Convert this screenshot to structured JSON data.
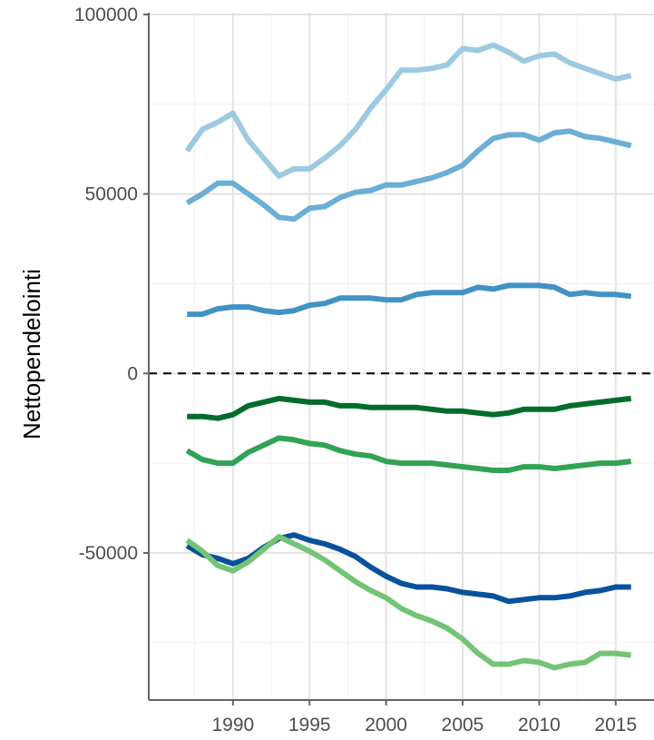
{
  "chart_data": {
    "type": "line",
    "title": "",
    "xlabel": "",
    "ylabel": "Nettopendelointi",
    "xlim": [
      1984.5,
      2017.5
    ],
    "ylim": [
      -91000,
      100500
    ],
    "grid": true,
    "reference_line": {
      "y": 0,
      "style": "dashed"
    },
    "x_ticks": [
      1990,
      1995,
      2000,
      2005,
      2010,
      2015
    ],
    "x_tick_labels": [
      "1990",
      "1995",
      "2000",
      "2005",
      "2010",
      "2015"
    ],
    "y_ticks": [
      -50000,
      0,
      50000,
      100000
    ],
    "y_tick_labels": [
      "-50000",
      "0",
      "50000",
      "100000"
    ],
    "x": [
      1987,
      1988,
      1989,
      1990,
      1991,
      1992,
      1993,
      1994,
      1995,
      1996,
      1997,
      1998,
      1999,
      2000,
      2001,
      2002,
      2003,
      2004,
      2005,
      2006,
      2007,
      2008,
      2009,
      2010,
      2011,
      2012,
      2013,
      2014,
      2015,
      2016
    ],
    "series": [
      {
        "color": "#9ecae1",
        "values": [
          62000,
          68000,
          70000,
          72500,
          65000,
          60000,
          55000,
          57000,
          57000,
          60000,
          63500,
          68000,
          74000,
          79000,
          84500,
          84500,
          85000,
          86000,
          90500,
          90000,
          91500,
          89500,
          87000,
          88500,
          89000,
          86500,
          85000,
          83500,
          82000,
          83000
        ]
      },
      {
        "color": "#6baed6",
        "values": [
          47500,
          50000,
          53000,
          53000,
          50000,
          47000,
          43500,
          43000,
          46000,
          46500,
          49000,
          50500,
          51000,
          52500,
          52500,
          53500,
          54500,
          56000,
          58000,
          62000,
          65500,
          66500,
          66500,
          65000,
          67000,
          67500,
          66000,
          65500,
          64500,
          63500
        ]
      },
      {
        "color": "#4292c6",
        "values": [
          16500,
          16500,
          18000,
          18500,
          18500,
          17500,
          17000,
          17500,
          19000,
          19500,
          21000,
          21000,
          21000,
          20500,
          20500,
          22000,
          22500,
          22500,
          22500,
          24000,
          23500,
          24500,
          24500,
          24500,
          24000,
          22000,
          22500,
          22000,
          22000,
          21500
        ]
      },
      {
        "color": "#006d2c",
        "values": [
          -12000,
          -12000,
          -12500,
          -11500,
          -9000,
          -8000,
          -7000,
          -7500,
          -8000,
          -8000,
          -9000,
          -9000,
          -9500,
          -9500,
          -9500,
          -9500,
          -10000,
          -10500,
          -10500,
          -11000,
          -11500,
          -11000,
          -10000,
          -10000,
          -10000,
          -9000,
          -8500,
          -8000,
          -7500,
          -7000
        ]
      },
      {
        "color": "#31a354",
        "values": [
          -21500,
          -24000,
          -25000,
          -25000,
          -22000,
          -20000,
          -18000,
          -18500,
          -19500,
          -20000,
          -21500,
          -22500,
          -23000,
          -24500,
          -25000,
          -25000,
          -25000,
          -25500,
          -26000,
          -26500,
          -27000,
          -27000,
          -26000,
          -26000,
          -26500,
          -26000,
          -25500,
          -25000,
          -25000,
          -24500
        ]
      },
      {
        "color": "#08519c",
        "values": [
          -48000,
          -50500,
          -51500,
          -53000,
          -51500,
          -48500,
          -46000,
          -45000,
          -46500,
          -47500,
          -49000,
          -51000,
          -54000,
          -56500,
          -58500,
          -59500,
          -59500,
          -60000,
          -61000,
          -61500,
          -62000,
          -63500,
          -63000,
          -62500,
          -62500,
          -62000,
          -61000,
          -60500,
          -59500,
          -59500
        ]
      },
      {
        "color": "#74c476",
        "values": [
          -46500,
          -49500,
          -53500,
          -55000,
          -52500,
          -49000,
          -45500,
          -47500,
          -49500,
          -52000,
          -55000,
          -58000,
          -60500,
          -62500,
          -65500,
          -67500,
          -69000,
          -71000,
          -74000,
          -78000,
          -81000,
          -81000,
          -80000,
          -80500,
          -82000,
          -81000,
          -80500,
          -78000,
          -78000,
          -78500
        ]
      }
    ]
  }
}
